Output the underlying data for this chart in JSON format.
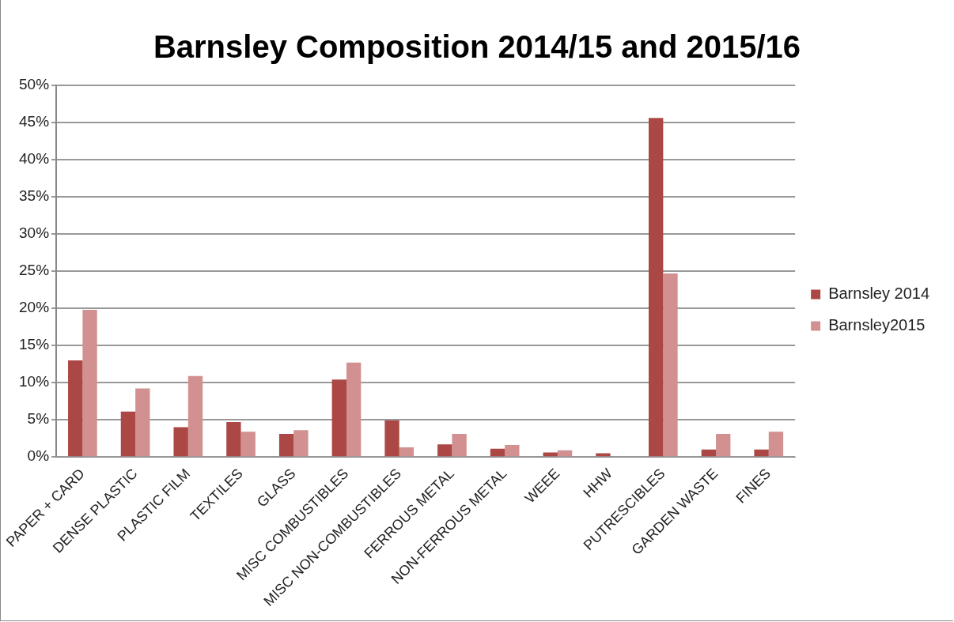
{
  "chart_data": {
    "type": "bar",
    "title": "Barnsley Composition 2014/15 and 2015/16",
    "categories": [
      "PAPER + CARD",
      "DENSE PLASTIC",
      "PLASTIC FILM",
      "TEXTILES",
      "GLASS",
      "MISC COMBUSTIBLES",
      "MISC NON-COMBUSTIBLES",
      "FERROUS METAL",
      "NON-FERROUS METAL",
      "WEEE",
      "HHW",
      "PUTRESCIBLES",
      "GARDEN WASTE",
      "FINES"
    ],
    "series": [
      {
        "name": "Barnsley 2014",
        "color": "#ab4745",
        "values": [
          13.0,
          6.1,
          4.0,
          4.7,
          3.1,
          10.4,
          4.9,
          1.7,
          1.1,
          0.6,
          0.5,
          45.6,
          1.0,
          1.0
        ]
      },
      {
        "name": "Barnsley2015",
        "color": "#d29190",
        "values": [
          19.8,
          9.2,
          10.9,
          3.4,
          3.6,
          12.7,
          1.3,
          3.1,
          1.6,
          0.9,
          0,
          24.7,
          3.1,
          3.4
        ]
      }
    ],
    "ylim": [
      0,
      50
    ],
    "yticks": [
      {
        "value": 0,
        "label": "0%"
      },
      {
        "value": 5,
        "label": "5%"
      },
      {
        "value": 10,
        "label": "10%"
      },
      {
        "value": 15,
        "label": "15%"
      },
      {
        "value": 20,
        "label": "20%"
      },
      {
        "value": 25,
        "label": "25%"
      },
      {
        "value": 30,
        "label": "30%"
      },
      {
        "value": 35,
        "label": "35%"
      },
      {
        "value": 40,
        "label": "40%"
      },
      {
        "value": 45,
        "label": "45%"
      },
      {
        "value": 50,
        "label": "50%"
      }
    ],
    "grid": "y",
    "legend": "right"
  }
}
